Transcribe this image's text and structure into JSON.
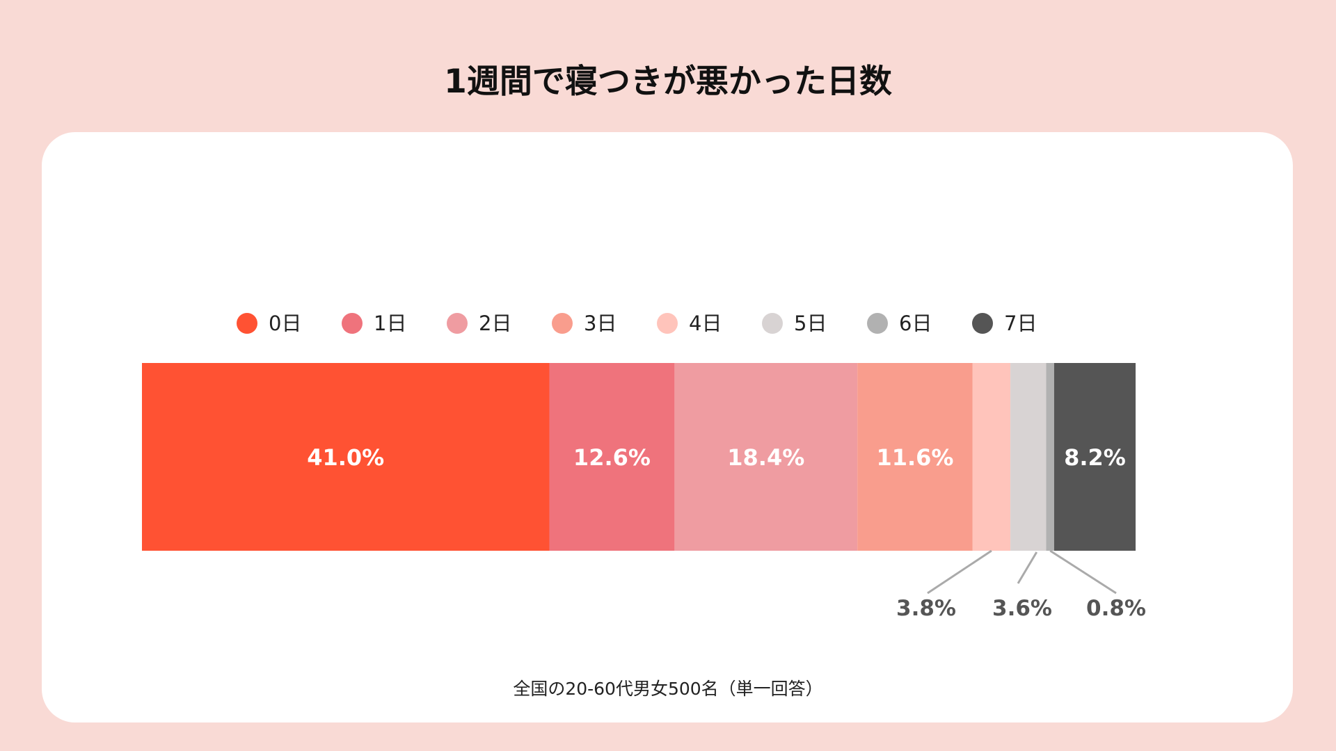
{
  "chart_data": {
    "type": "bar",
    "orientation": "horizontal-stacked-100",
    "title": "1週間で寝つきが悪かった日数",
    "footnote": "全国の20-60代男女500名（単一回答）",
    "legend_position": "top",
    "series": [
      {
        "name": "0日",
        "value": 41.0,
        "label": "41.0%",
        "color": "#ff5233",
        "label_placement": "inside"
      },
      {
        "name": "1日",
        "value": 12.6,
        "label": "12.6%",
        "color": "#ef737c",
        "label_placement": "inside"
      },
      {
        "name": "2日",
        "value": 18.4,
        "label": "18.4%",
        "color": "#ef9ca1",
        "label_placement": "inside"
      },
      {
        "name": "3日",
        "value": 11.6,
        "label": "11.6%",
        "color": "#f99d8d",
        "label_placement": "inside"
      },
      {
        "name": "4日",
        "value": 3.8,
        "label": "3.8%",
        "color": "#ffc4bb",
        "label_placement": "callout"
      },
      {
        "name": "5日",
        "value": 3.6,
        "label": "3.6%",
        "color": "#d8d3d3",
        "label_placement": "callout"
      },
      {
        "name": "6日",
        "value": 0.8,
        "label": "0.8%",
        "color": "#b1b1b1",
        "label_placement": "callout"
      },
      {
        "name": "7日",
        "value": 8.2,
        "label": "8.2%",
        "color": "#555555",
        "label_placement": "inside"
      }
    ],
    "xlim": [
      0,
      100
    ]
  }
}
